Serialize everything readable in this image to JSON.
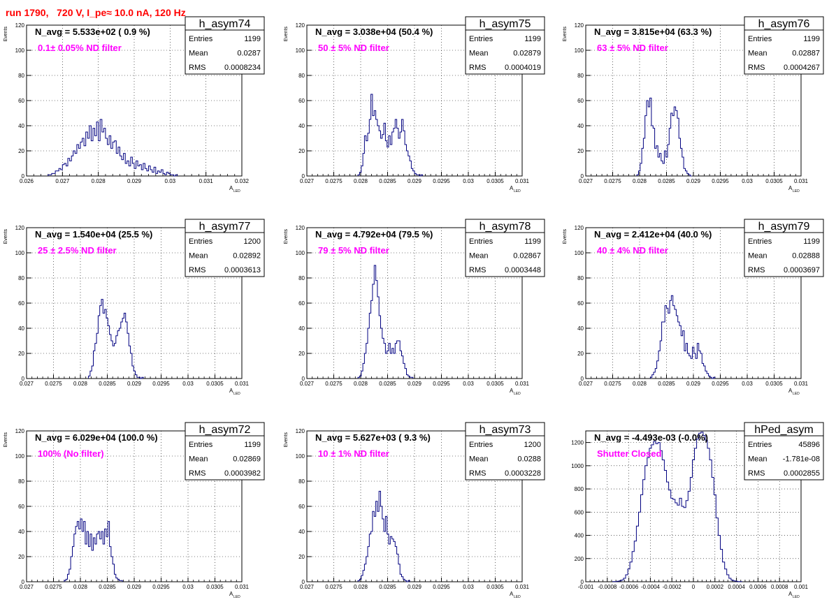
{
  "run_title": "run 1790,   720 V, I_pe≈ 10.0 nA, 120 Hz",
  "colors": {
    "line": "#000080",
    "magenta": "#ff00ff",
    "title": "#ff0000",
    "grid": "#000000"
  },
  "chart_data": [
    {
      "type": "histogram",
      "name": "h_asym74",
      "navg": "N_avg = 5.533e+02 ( 0.9 %)",
      "label": "0.1± 0.05% ND filter",
      "stats": {
        "Entries": "1199",
        "Mean": "0.0287",
        "RMS": "0.0008234"
      },
      "xlabel": "A",
      "xlabel_sub": "LED",
      "ylabel": "Events",
      "xlim": [
        0.026,
        0.032
      ],
      "ylim": [
        0,
        120
      ],
      "xticks": [
        "0.026",
        "0.027",
        "0.028",
        "0.029",
        "0.03",
        "0.031",
        "0.032"
      ],
      "xtick_values": [
        0.026,
        0.027,
        0.028,
        0.029,
        0.03,
        0.031,
        0.032
      ],
      "yticks": [
        0,
        20,
        40,
        60,
        80,
        100,
        120
      ],
      "bin_start": 0.0266,
      "bin_width": 5e-05,
      "counts": [
        1,
        1,
        2,
        2,
        4,
        4,
        6,
        5,
        9,
        10,
        8,
        14,
        12,
        16,
        20,
        18,
        25,
        22,
        27,
        30,
        24,
        35,
        30,
        40,
        28,
        38,
        32,
        43,
        28,
        45,
        35,
        38,
        30,
        25,
        32,
        22,
        27,
        28,
        18,
        23,
        16,
        13,
        18,
        10,
        12,
        8,
        15,
        10,
        6,
        12,
        8,
        9,
        5,
        10,
        6,
        4,
        8,
        5,
        3,
        7,
        2,
        4,
        3,
        5,
        2,
        1,
        3,
        2,
        1,
        1,
        0,
        1
      ]
    },
    {
      "type": "histogram",
      "name": "h_asym75",
      "navg": "N_avg = 3.038e+04 (50.4 %)",
      "label": "50 ± 5% ND filter",
      "stats": {
        "Entries": "1199",
        "Mean": "0.02879",
        "RMS": "0.0004019"
      },
      "xlabel": "A",
      "xlabel_sub": "LED",
      "ylabel": "Events",
      "xlim": [
        0.027,
        0.031
      ],
      "ylim": [
        0,
        120
      ],
      "xticks": [
        "0.027",
        "0.0275",
        "0.028",
        "0.0285",
        "0.029",
        "0.0295",
        "0.03",
        "0.0305",
        "0.031"
      ],
      "xtick_values": [
        0.027,
        0.0275,
        0.028,
        0.0285,
        0.029,
        0.0295,
        0.03,
        0.0305,
        0.031
      ],
      "yticks": [
        0,
        20,
        40,
        60,
        80,
        100,
        120
      ],
      "bin_start": 0.02795,
      "bin_width": 3e-05,
      "counts": [
        1,
        3,
        8,
        18,
        32,
        28,
        34,
        45,
        65,
        48,
        52,
        45,
        40,
        36,
        30,
        33,
        42,
        28,
        23,
        32,
        25,
        35,
        38,
        45,
        38,
        30,
        35,
        45,
        36,
        25,
        20,
        16,
        12,
        6,
        4,
        2,
        1,
        1,
        0,
        1
      ]
    },
    {
      "type": "histogram",
      "name": "h_asym76",
      "navg": "N_avg = 3.815e+04 (63.3 %)",
      "label": "63 ± 5% ND filter",
      "stats": {
        "Entries": "1199",
        "Mean": "0.02887",
        "RMS": "0.0004267"
      },
      "xlabel": "A",
      "xlabel_sub": "LED",
      "ylabel": "Events",
      "xlim": [
        0.027,
        0.031
      ],
      "ylim": [
        0,
        120
      ],
      "xticks": [
        "0.027",
        "0.0275",
        "0.028",
        "0.0285",
        "0.029",
        "0.0295",
        "0.03",
        "0.0305",
        "0.031"
      ],
      "xtick_values": [
        0.027,
        0.0275,
        0.028,
        0.0285,
        0.029,
        0.0295,
        0.03,
        0.0305,
        0.031
      ],
      "yticks": [
        0,
        20,
        40,
        60,
        80,
        100,
        120
      ],
      "bin_start": 0.02795,
      "bin_width": 3e-05,
      "counts": [
        1,
        4,
        10,
        22,
        30,
        48,
        60,
        55,
        62,
        40,
        38,
        22,
        24,
        15,
        18,
        12,
        10,
        20,
        15,
        25,
        38,
        50,
        48,
        55,
        52,
        46,
        30,
        22,
        15,
        6,
        4,
        2,
        1,
        0
      ]
    },
    {
      "type": "histogram",
      "name": "h_asym77",
      "navg": "N_avg = 1.540e+04 (25.5 %)",
      "label": "25 ± 2.5% ND filter",
      "stats": {
        "Entries": "1200",
        "Mean": "0.02892",
        "RMS": "0.0003613"
      },
      "xlabel": "A",
      "xlabel_sub": "LED",
      "ylabel": "Events",
      "xlim": [
        0.027,
        0.031
      ],
      "ylim": [
        0,
        120
      ],
      "xticks": [
        "0.027",
        "0.0275",
        "0.028",
        "0.0285",
        "0.029",
        "0.0295",
        "0.03",
        "0.0305",
        "0.031"
      ],
      "xtick_values": [
        0.027,
        0.0275,
        0.028,
        0.0285,
        0.029,
        0.0295,
        0.03,
        0.0305,
        0.031
      ],
      "yticks": [
        0,
        20,
        40,
        60,
        80,
        100,
        120
      ],
      "bin_start": 0.02815,
      "bin_width": 3e-05,
      "counts": [
        2,
        6,
        10,
        22,
        28,
        36,
        50,
        58,
        63,
        52,
        55,
        48,
        42,
        35,
        30,
        26,
        28,
        34,
        38,
        40,
        45,
        48,
        52,
        45,
        36,
        26,
        20,
        10,
        6,
        3,
        1,
        1,
        0,
        1
      ]
    },
    {
      "type": "histogram",
      "name": "h_asym78",
      "navg": "N_avg = 4.792e+04 (79.5 %)",
      "label": "79 ± 5% ND filter",
      "stats": {
        "Entries": "1199",
        "Mean": "0.02867",
        "RMS": "0.0003448"
      },
      "xlabel": "A",
      "xlabel_sub": "LED",
      "ylabel": "Events",
      "xlim": [
        0.027,
        0.031
      ],
      "ylim": [
        0,
        120
      ],
      "xticks": [
        "0.027",
        "0.0275",
        "0.028",
        "0.0285",
        "0.029",
        "0.0295",
        "0.03",
        "0.0305",
        "0.031"
      ],
      "xtick_values": [
        0.027,
        0.0275,
        0.028,
        0.0285,
        0.029,
        0.0295,
        0.03,
        0.0305,
        0.031
      ],
      "yticks": [
        0,
        20,
        40,
        60,
        80,
        100,
        120
      ],
      "bin_start": 0.02795,
      "bin_width": 3e-05,
      "counts": [
        1,
        2,
        6,
        12,
        20,
        28,
        40,
        52,
        62,
        75,
        90,
        78,
        65,
        50,
        40,
        32,
        28,
        20,
        22,
        28,
        20,
        24,
        20,
        28,
        30,
        30,
        22,
        18,
        12,
        8,
        3,
        2,
        1,
        1
      ]
    },
    {
      "type": "histogram",
      "name": "h_asym79",
      "navg": "N_avg = 2.412e+04 (40.0 %)",
      "label": "40 ± 4% ND filter",
      "stats": {
        "Entries": "1199",
        "Mean": "0.02888",
        "RMS": "0.0003697"
      },
      "xlabel": "A",
      "xlabel_sub": "LED",
      "ylabel": "Events",
      "xlim": [
        0.027,
        0.031
      ],
      "ylim": [
        0,
        120
      ],
      "xticks": [
        "0.027",
        "0.0275",
        "0.028",
        "0.0285",
        "0.029",
        "0.0295",
        "0.03",
        "0.0305",
        "0.031"
      ],
      "xtick_values": [
        0.027,
        0.0275,
        0.028,
        0.0285,
        0.029,
        0.0295,
        0.03,
        0.0305,
        0.031
      ],
      "yticks": [
        0,
        20,
        40,
        60,
        80,
        100,
        120
      ],
      "bin_start": 0.0282,
      "bin_width": 3e-05,
      "counts": [
        1,
        3,
        5,
        8,
        14,
        22,
        30,
        45,
        45,
        58,
        56,
        52,
        62,
        66,
        58,
        55,
        50,
        45,
        42,
        34,
        38,
        22,
        28,
        20,
        18,
        16,
        25,
        20,
        16,
        28,
        22,
        20,
        12,
        10,
        6,
        4,
        2,
        1,
        0,
        1
      ]
    },
    {
      "type": "histogram",
      "name": "h_asym72",
      "navg": "N_avg = 6.029e+04 (100.0 %)",
      "label": "100% (No filter)",
      "stats": {
        "Entries": "1199",
        "Mean": "0.02869",
        "RMS": "0.0003982"
      },
      "xlabel": "A",
      "xlabel_sub": "LED",
      "ylabel": "Events",
      "xlim": [
        0.027,
        0.031
      ],
      "ylim": [
        0,
        120
      ],
      "xticks": [
        "0.027",
        "0.0275",
        "0.028",
        "0.0285",
        "0.029",
        "0.0295",
        "0.03",
        "0.0305",
        "0.031"
      ],
      "xtick_values": [
        0.027,
        0.0275,
        0.028,
        0.0285,
        0.029,
        0.0295,
        0.03,
        0.0305,
        0.031
      ],
      "yticks": [
        0,
        20,
        40,
        60,
        80,
        100,
        120
      ],
      "bin_start": 0.0277,
      "bin_width": 3e-05,
      "counts": [
        1,
        2,
        6,
        10,
        20,
        28,
        38,
        44,
        48,
        42,
        50,
        40,
        48,
        30,
        40,
        28,
        38,
        25,
        35,
        30,
        38,
        40,
        34,
        40,
        30,
        42,
        36,
        48,
        28,
        20,
        14,
        6,
        3,
        2,
        1,
        1
      ]
    },
    {
      "type": "histogram",
      "name": "h_asym73",
      "navg": "N_avg = 5.627e+03 ( 9.3 %)",
      "label": "10 ± 1% ND filter",
      "stats": {
        "Entries": "1200",
        "Mean": "0.0288",
        "RMS": "0.0003228"
      },
      "xlabel": "A",
      "xlabel_sub": "LED",
      "ylabel": "Events",
      "xlim": [
        0.027,
        0.031
      ],
      "ylim": [
        0,
        120
      ],
      "xticks": [
        "0.027",
        "0.0275",
        "0.028",
        "0.0285",
        "0.029",
        "0.0295",
        "0.03",
        "0.0305",
        "0.031"
      ],
      "xtick_values": [
        0.027,
        0.0275,
        0.028,
        0.0285,
        0.029,
        0.0295,
        0.03,
        0.0305,
        0.031
      ],
      "yticks": [
        0,
        20,
        40,
        60,
        80,
        100,
        120
      ],
      "bin_start": 0.02795,
      "bin_width": 3e-05,
      "counts": [
        1,
        2,
        5,
        9,
        14,
        20,
        28,
        38,
        40,
        56,
        52,
        64,
        56,
        72,
        60,
        50,
        40,
        52,
        38,
        30,
        36,
        34,
        32,
        28,
        22,
        14,
        6,
        4,
        2,
        1,
        0,
        1
      ]
    },
    {
      "type": "histogram",
      "name": "hPed_asym",
      "navg": "N_avg = -4.493e-03 (-0.0%)",
      "label": "Shutter Closed",
      "stats": {
        "Entries": "45896",
        "Mean": "-1.781e-08",
        "RMS": "0.0002855"
      },
      "xlabel": "A",
      "xlabel_sub": "LED",
      "ylabel": "",
      "xlim": [
        -0.001,
        0.001
      ],
      "ylim": [
        0,
        1300
      ],
      "xticks": [
        "-0.001",
        "-0.0008",
        "-0.0006",
        "-0.0004",
        "-0.0002",
        "0",
        "0.0002",
        "0.0004",
        "0.0006",
        "0.0008",
        "0.001"
      ],
      "xtick_values": [
        -0.001,
        -0.0008,
        -0.0006,
        -0.0004,
        -0.0002,
        0,
        0.0002,
        0.0004,
        0.0006,
        0.0008,
        0.001
      ],
      "yticks": [
        0,
        200,
        400,
        600,
        800,
        1000,
        1200
      ],
      "bin_start": -0.00075,
      "bin_width": 2e-05,
      "counts": [
        1,
        2,
        4,
        8,
        15,
        30,
        60,
        110,
        170,
        260,
        350,
        480,
        600,
        750,
        880,
        1000,
        1070,
        1150,
        1180,
        1210,
        1190,
        1200,
        1130,
        1050,
        960,
        860,
        790,
        720,
        710,
        680,
        660,
        720,
        650,
        640,
        700,
        780,
        900,
        1050,
        1150,
        1230,
        1280,
        1290,
        1260,
        1220,
        1150,
        1050,
        900,
        750,
        550,
        400,
        280,
        170,
        110,
        60,
        30,
        15,
        8,
        4,
        2,
        1
      ]
    }
  ]
}
